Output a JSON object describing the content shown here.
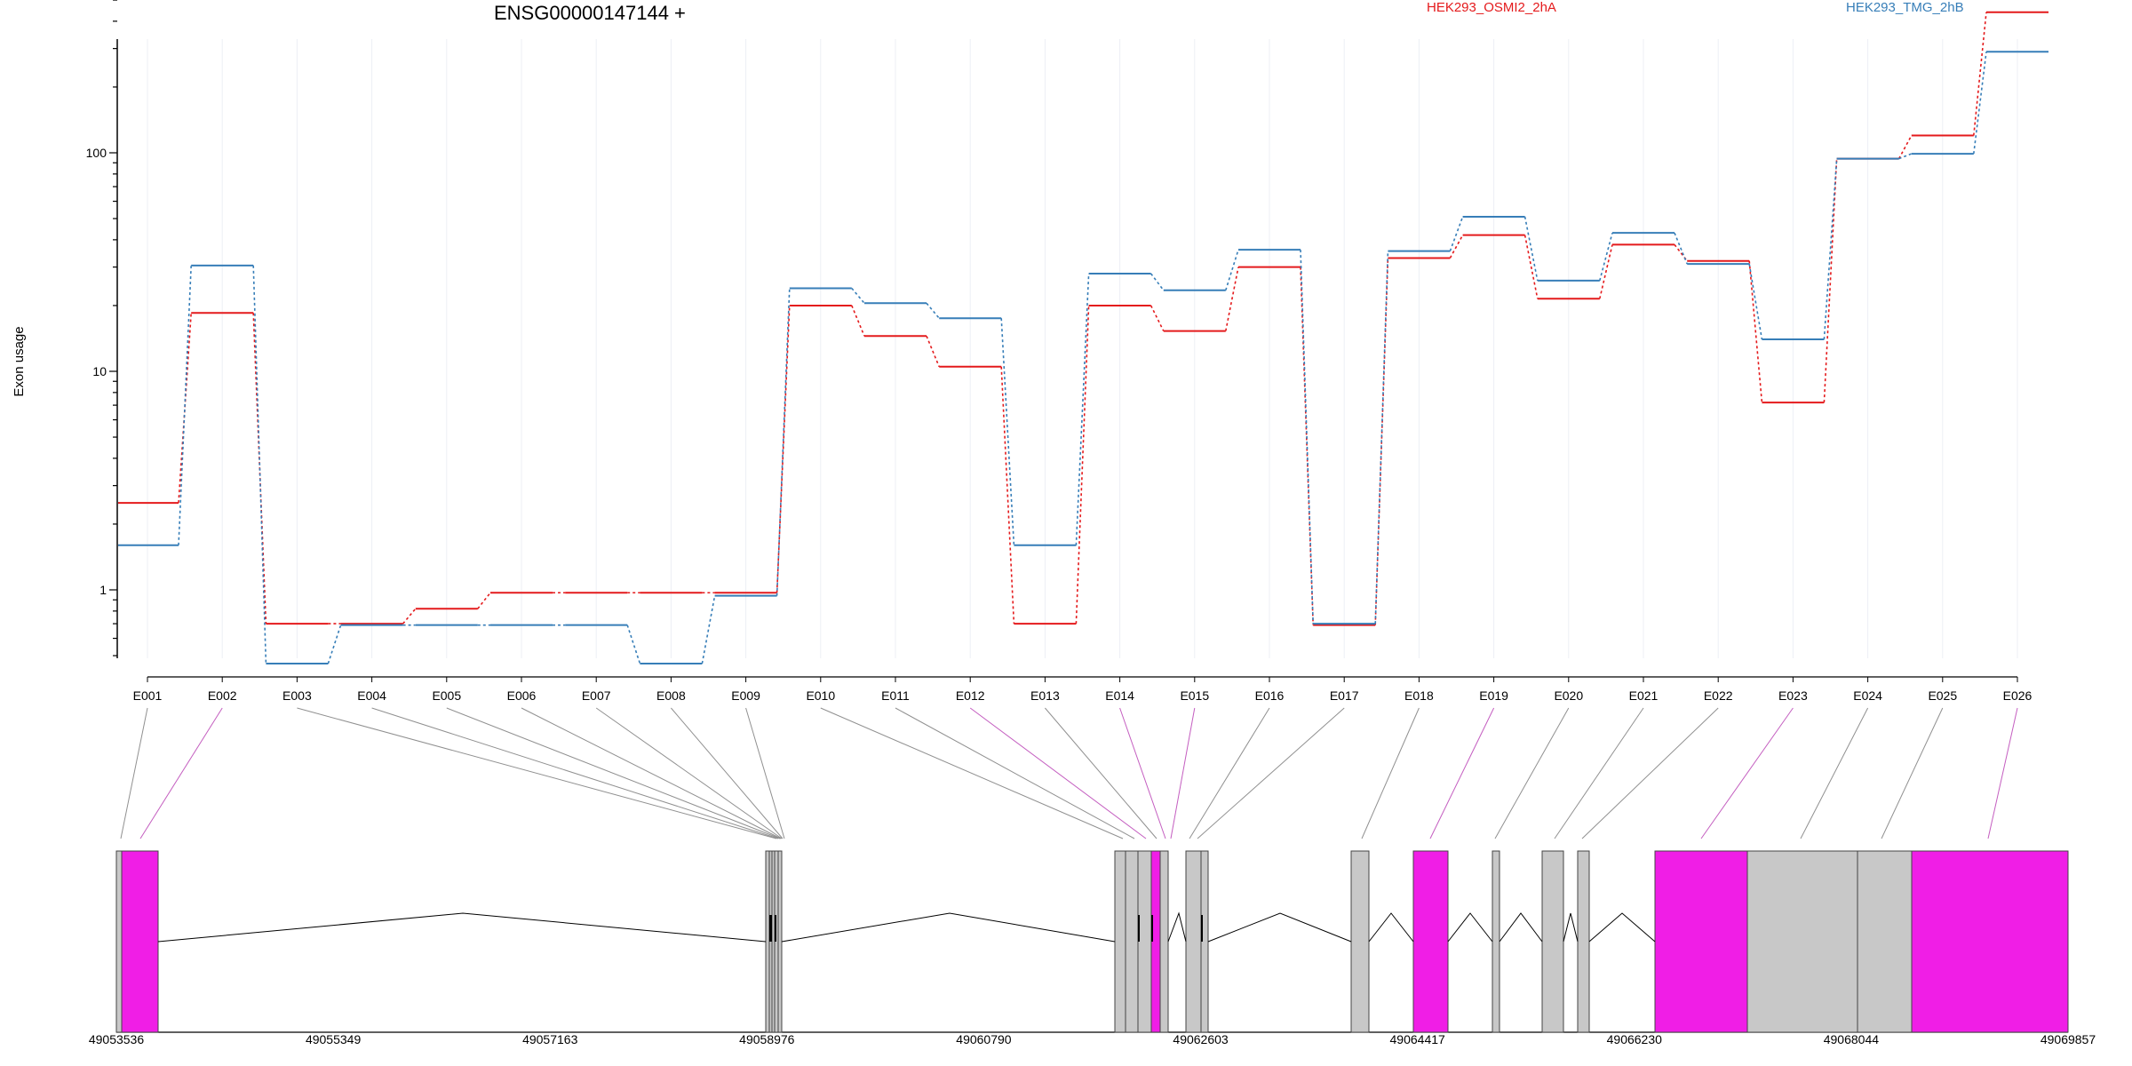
{
  "chart_data": {
    "type": "line",
    "title": "ENSG00000147144 +",
    "ylabel": "Exon usage",
    "xlabel": "",
    "yscale": "log",
    "ylim": [
      0.48,
      600
    ],
    "yticks": [
      "1",
      "10",
      "100"
    ],
    "grid": "vertical, light",
    "legend_position": "top",
    "categories": [
      "E001",
      "E002",
      "E003",
      "E004",
      "E005",
      "E006",
      "E007",
      "E008",
      "E009",
      "E010",
      "E011",
      "E012",
      "E013",
      "E014",
      "E015",
      "E016",
      "E017",
      "E018",
      "E019",
      "E020",
      "E021",
      "E022",
      "E023",
      "E024",
      "E025",
      "E026"
    ],
    "series": [
      {
        "name": "HEK293_OSMI2_2hA",
        "color": "#e41a1c",
        "values": [
          2.5,
          18.5,
          0.7,
          0.7,
          0.82,
          0.97,
          0.97,
          0.97,
          0.97,
          20,
          14.5,
          10.5,
          0.7,
          20,
          15.3,
          30,
          0.69,
          33,
          42,
          21.5,
          38,
          32,
          7.2,
          94,
          120,
          440
        ]
      },
      {
        "name": "HEK293_TMG_2hB",
        "color": "#377eb8",
        "values": [
          1.6,
          30.5,
          0.46,
          0.69,
          0.69,
          0.69,
          0.69,
          0.46,
          0.94,
          24,
          20.5,
          17.5,
          1.6,
          28,
          23.5,
          36,
          0.7,
          35.5,
          51,
          26,
          43,
          31,
          14,
          94,
          99,
          290
        ]
      }
    ],
    "genomic_axis": {
      "ticks": [
        "49053536",
        "49055349",
        "49057163",
        "49058976",
        "49060790",
        "49062603",
        "49064417",
        "49066230",
        "49068044",
        "49069857"
      ]
    }
  },
  "colors": {
    "highlight": "#f01ee6",
    "exon": "#c8c8c8",
    "grid": "#eceff5"
  }
}
